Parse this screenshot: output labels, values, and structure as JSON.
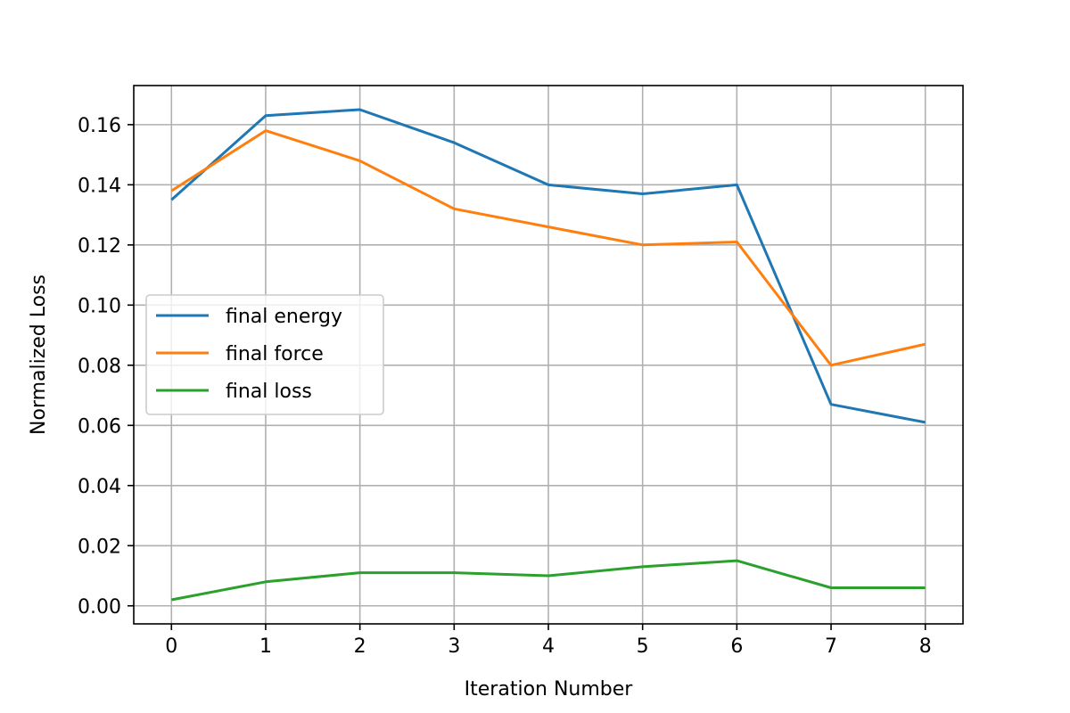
{
  "chart_data": {
    "type": "line",
    "title": "",
    "xlabel": "Iteration Number",
    "ylabel": "Normalized Loss",
    "x": [
      0,
      1,
      2,
      3,
      4,
      5,
      6,
      7,
      8
    ],
    "xlim": [
      -0.4,
      8.4
    ],
    "ylim": [
      -0.006,
      0.173
    ],
    "xticks": [
      0,
      1,
      2,
      3,
      4,
      5,
      6,
      7,
      8
    ],
    "xtick_labels": [
      "0",
      "1",
      "2",
      "3",
      "4",
      "5",
      "6",
      "7",
      "8"
    ],
    "yticks": [
      0.0,
      0.02,
      0.04,
      0.06,
      0.08,
      0.1,
      0.12,
      0.14,
      0.16
    ],
    "ytick_labels": [
      "0.00",
      "0.02",
      "0.04",
      "0.06",
      "0.08",
      "0.10",
      "0.12",
      "0.14",
      "0.16"
    ],
    "grid": true,
    "legend_position": "center-left",
    "series": [
      {
        "name": "final energy",
        "color": "#1f77b4",
        "values": [
          0.135,
          0.163,
          0.165,
          0.154,
          0.14,
          0.137,
          0.14,
          0.067,
          0.061
        ]
      },
      {
        "name": "final force",
        "color": "#ff7f0e",
        "values": [
          0.138,
          0.158,
          0.148,
          0.132,
          0.126,
          0.12,
          0.121,
          0.08,
          0.087
        ]
      },
      {
        "name": "final loss",
        "color": "#2ca02c",
        "values": [
          0.002,
          0.008,
          0.011,
          0.011,
          0.01,
          0.013,
          0.015,
          0.006,
          0.006
        ]
      }
    ]
  }
}
